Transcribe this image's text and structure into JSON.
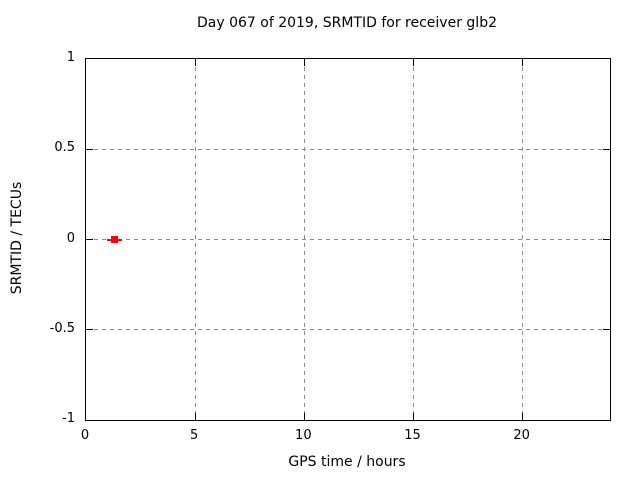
{
  "chart_data": {
    "type": "scatter",
    "title": "Day 067 of 2019, SRMTID for receiver glb2",
    "xlabel": "GPS time / hours",
    "ylabel": "SRMTID / TECUs",
    "xlim": [
      0,
      24
    ],
    "ylim": [
      -1,
      1
    ],
    "xticks": [
      0,
      5,
      10,
      15,
      20
    ],
    "xtick_labels": [
      "0",
      "5",
      "10",
      "15",
      "20"
    ],
    "yticks": [
      -1,
      -0.5,
      0,
      0.5,
      1
    ],
    "ytick_labels": [
      "-1",
      "-0.5",
      "0",
      "0.5",
      "1"
    ],
    "grid": true,
    "legend": "none",
    "colors": {
      "border": "#000000",
      "grid": "#8c8c8c",
      "text": "#000000",
      "series": "#ff0000"
    },
    "series": [
      {
        "name": "SRMTID",
        "marker": "filled-square",
        "color": "#ff0000",
        "points": [
          {
            "x": 1.3,
            "y": 0.0,
            "xerr": 0.35
          }
        ]
      }
    ]
  }
}
